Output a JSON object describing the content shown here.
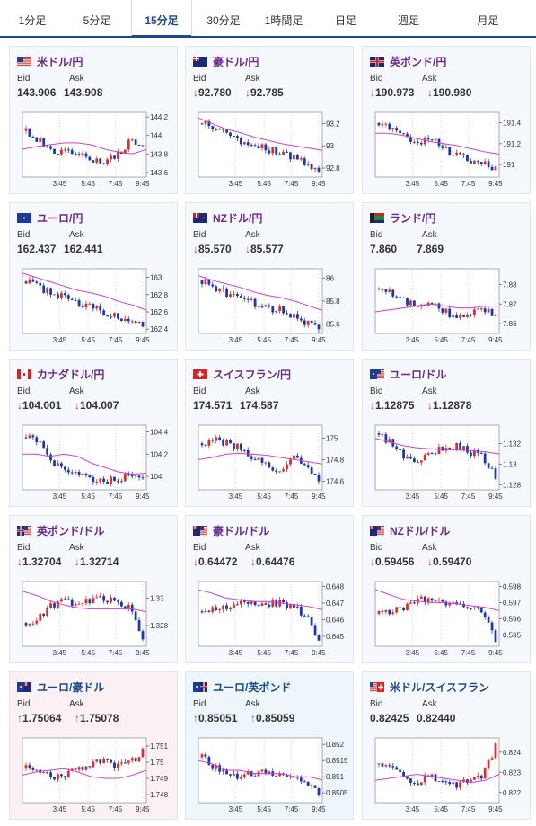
{
  "tabs": [
    {
      "label": "1分足",
      "active": false
    },
    {
      "label": "5分足",
      "active": false
    },
    {
      "label": "15分足",
      "active": true
    },
    {
      "label": "30分足",
      "active": false
    },
    {
      "label": "1時間足",
      "active": false
    },
    {
      "label": "日足",
      "active": false
    },
    {
      "label": "週足",
      "active": false
    },
    {
      "label": "月足",
      "active": false
    }
  ],
  "labels": {
    "bid": "Bid",
    "ask": "Ask"
  },
  "colors": {
    "up": "#d63030",
    "down": "#1a3aa8",
    "ma": "#d040d0",
    "arrow_down": "#d63030",
    "arrow_up": "#2a7ad0",
    "name": "#6a2a8a"
  },
  "cards": [
    {
      "name": "米ドル/円",
      "flag": "us",
      "bid": "143.906",
      "ask": "143.908",
      "dir": "",
      "chart_data": {
        "type": "candlestick",
        "x_ticks": [
          "3:45",
          "5:45",
          "7:45",
          "9:45"
        ],
        "y_ticks": [
          "144.2",
          "144",
          "143.8",
          "143.6"
        ],
        "ylim": [
          143.55,
          144.25
        ],
        "trend": [
          144.05,
          143.95,
          143.85,
          143.82,
          143.78,
          143.75,
          143.72,
          143.78,
          143.95,
          143.93
        ],
        "ma": [
          143.85,
          143.88,
          143.9,
          143.92,
          143.92,
          143.9,
          143.85,
          143.82,
          143.8,
          143.85
        ]
      }
    },
    {
      "name": "豪ドル/円",
      "flag": "au",
      "bid": "92.780",
      "ask": "92.785",
      "dir": "down",
      "chart_data": {
        "type": "candlestick",
        "x_ticks": [
          "3:45",
          "5:45",
          "7:45",
          "9:45"
        ],
        "y_ticks": [
          "93.2",
          "93",
          "92.8"
        ],
        "ylim": [
          92.72,
          93.3
        ],
        "trend": [
          93.2,
          93.15,
          93.1,
          93.05,
          93.0,
          92.97,
          92.95,
          92.9,
          92.85,
          92.78
        ],
        "ma": [
          93.25,
          93.2,
          93.15,
          93.12,
          93.08,
          93.05,
          93.02,
          93.0,
          92.98,
          92.96
        ]
      }
    },
    {
      "name": "英ポンド/円",
      "flag": "gb",
      "bid": "190.973",
      "ask": "190.980",
      "dir": "down",
      "chart_data": {
        "type": "candlestick",
        "x_ticks": [
          "3:45",
          "5:45",
          "7:45",
          "9:45"
        ],
        "y_ticks": [
          "191.4",
          "191.2",
          "191"
        ],
        "ylim": [
          190.88,
          191.5
        ],
        "trend": [
          191.4,
          191.35,
          191.3,
          191.2,
          191.25,
          191.15,
          191.1,
          191.05,
          191.0,
          190.97
        ],
        "ma": [
          191.3,
          191.3,
          191.28,
          191.25,
          191.22,
          191.2,
          191.18,
          191.15,
          191.12,
          191.1
        ]
      }
    },
    {
      "name": "ユーロ/円",
      "flag": "eu",
      "bid": "162.437",
      "ask": "162.441",
      "dir": "",
      "chart_data": {
        "type": "candlestick",
        "x_ticks": [
          "3:45",
          "5:45",
          "7:45",
          "9:45"
        ],
        "y_ticks": [
          "163",
          "162.8",
          "162.6",
          "162.4"
        ],
        "ylim": [
          162.35,
          163.1
        ],
        "trend": [
          162.95,
          162.9,
          162.8,
          162.78,
          162.7,
          162.65,
          162.6,
          162.55,
          162.5,
          162.44
        ],
        "ma": [
          163.05,
          163.0,
          162.95,
          162.9,
          162.85,
          162.82,
          162.78,
          162.72,
          162.68,
          162.62
        ]
      }
    },
    {
      "name": "NZドル/円",
      "flag": "nz",
      "bid": "85.570",
      "ask": "85.577",
      "dir": "down",
      "chart_data": {
        "type": "candlestick",
        "x_ticks": [
          "3:45",
          "5:45",
          "7:45",
          "9:45"
        ],
        "y_ticks": [
          "86",
          "85.8",
          "85.6"
        ],
        "ylim": [
          85.52,
          86.08
        ],
        "trend": [
          85.98,
          85.92,
          85.86,
          85.82,
          85.78,
          85.75,
          85.72,
          85.68,
          85.62,
          85.57
        ],
        "ma": [
          86.02,
          85.98,
          85.95,
          85.92,
          85.88,
          85.85,
          85.83,
          85.8,
          85.76,
          85.72
        ]
      }
    },
    {
      "name": "ランド/円",
      "flag": "za",
      "bid": "7.860",
      "ask": "7.869",
      "dir": "",
      "chart_data": {
        "type": "candlestick",
        "x_ticks": [
          "3:45",
          "5:45",
          "7:45",
          "9:45"
        ],
        "y_ticks": [
          "7.88",
          "7.87",
          "7.86"
        ],
        "ylim": [
          7.855,
          7.888
        ],
        "trend": [
          7.878,
          7.875,
          7.872,
          7.868,
          7.872,
          7.866,
          7.864,
          7.866,
          7.868,
          7.864
        ],
        "ma": [
          7.866,
          7.867,
          7.868,
          7.869,
          7.87,
          7.869,
          7.868,
          7.868,
          7.869,
          7.869
        ]
      }
    },
    {
      "name": "カナダドル/円",
      "flag": "ca",
      "bid": "104.001",
      "ask": "104.007",
      "dir": "down",
      "chart_data": {
        "type": "candlestick",
        "x_ticks": [
          "3:45",
          "5:45",
          "7:45",
          "9:45"
        ],
        "y_ticks": [
          "104.4",
          "104.2",
          "104"
        ],
        "ylim": [
          103.88,
          104.46
        ],
        "trend": [
          104.35,
          104.3,
          104.15,
          104.05,
          104.0,
          103.98,
          103.95,
          103.98,
          104.0,
          104.02
        ],
        "ma": [
          104.2,
          104.2,
          104.18,
          104.2,
          104.18,
          104.12,
          104.08,
          104.04,
          104.02,
          104.03
        ]
      }
    },
    {
      "name": "スイスフラン/円",
      "flag": "ch",
      "bid": "174.571",
      "ask": "174.587",
      "dir": "",
      "chart_data": {
        "type": "candlestick",
        "x_ticks": [
          "3:45",
          "5:45",
          "7:45",
          "9:45"
        ],
        "y_ticks": [
          "175",
          "174.8",
          "174.6"
        ],
        "ylim": [
          174.52,
          175.12
        ],
        "trend": [
          174.95,
          175.0,
          174.95,
          174.9,
          174.8,
          174.75,
          174.7,
          174.85,
          174.75,
          174.6
        ],
        "ma": [
          174.8,
          174.82,
          174.85,
          174.86,
          174.85,
          174.84,
          174.82,
          174.8,
          174.78,
          174.76
        ]
      }
    },
    {
      "name": "ユーロ/ドル",
      "flag": "euus",
      "bid": "1.12875",
      "ask": "1.12878",
      "dir": "down",
      "chart_data": {
        "type": "candlestick",
        "x_ticks": [
          "3:45",
          "5:45",
          "7:45",
          "9:45"
        ],
        "y_ticks": [
          "1.132",
          "1.13",
          "1.128"
        ],
        "ylim": [
          1.1275,
          1.1338
        ],
        "trend": [
          1.133,
          1.132,
          1.1305,
          1.13,
          1.131,
          1.1315,
          1.1318,
          1.1312,
          1.1308,
          1.1288
        ],
        "ma": [
          1.1325,
          1.1322,
          1.1318,
          1.1316,
          1.1315,
          1.1314,
          1.1314,
          1.1313,
          1.1312,
          1.131
        ]
      }
    },
    {
      "name": "英ポンド/ドル",
      "flag": "gbus",
      "bid": "1.32704",
      "ask": "1.32714",
      "dir": "down",
      "chart_data": {
        "type": "candlestick",
        "x_ticks": [
          "3:45",
          "5:45",
          "7:45",
          "9:45"
        ],
        "y_ticks": [
          "1.33",
          "1.328"
        ],
        "ylim": [
          1.3265,
          1.3312
        ],
        "trend": [
          1.3282,
          1.3285,
          1.3295,
          1.3298,
          1.3296,
          1.3298,
          1.33,
          1.3298,
          1.3292,
          1.3272
        ],
        "ma": [
          1.3305,
          1.3302,
          1.3298,
          1.3295,
          1.3293,
          1.3292,
          1.3292,
          1.3292,
          1.3292,
          1.329
        ]
      }
    },
    {
      "name": "豪ドル/ドル",
      "flag": "auus",
      "bid": "0.64472",
      "ask": "0.64476",
      "dir": "down",
      "chart_data": {
        "type": "candlestick",
        "x_ticks": [
          "3:45",
          "5:45",
          "7:45",
          "9:45"
        ],
        "y_ticks": [
          "0.648",
          "0.647",
          "0.646",
          "0.645"
        ],
        "ylim": [
          0.6444,
          0.6483
        ],
        "trend": [
          0.6465,
          0.6466,
          0.6468,
          0.6472,
          0.6471,
          0.647,
          0.647,
          0.6468,
          0.6463,
          0.6447
        ],
        "ma": [
          0.6478,
          0.6476,
          0.6473,
          0.6472,
          0.6471,
          0.6471,
          0.647,
          0.6469,
          0.6468,
          0.6466
        ]
      }
    },
    {
      "name": "NZドル/ドル",
      "flag": "nzus",
      "bid": "0.59456",
      "ask": "0.59470",
      "dir": "down",
      "chart_data": {
        "type": "candlestick",
        "x_ticks": [
          "3:45",
          "5:45",
          "7:45",
          "9:45"
        ],
        "y_ticks": [
          "0.598",
          "0.597",
          "0.596",
          "0.595"
        ],
        "ylim": [
          0.5943,
          0.5983
        ],
        "trend": [
          0.5963,
          0.5964,
          0.5967,
          0.5972,
          0.5971,
          0.597,
          0.5969,
          0.5967,
          0.5963,
          0.5946
        ],
        "ma": [
          0.5978,
          0.5975,
          0.5972,
          0.5971,
          0.597,
          0.597,
          0.5969,
          0.5968,
          0.5967,
          0.5965
        ]
      }
    },
    {
      "name": "ユーロ/豪ドル",
      "flag": "euau",
      "bid": "1.75064",
      "ask": "1.75078",
      "dir": "up",
      "chart_data": {
        "type": "candlestick",
        "x_ticks": [
          "3:45",
          "5:45",
          "7:45",
          "9:45"
        ],
        "y_ticks": [
          "1.751",
          "1.75",
          "1.749",
          "1.748"
        ],
        "ylim": [
          1.7475,
          1.7515
        ],
        "trend": [
          1.7496,
          1.7495,
          1.749,
          1.7492,
          1.7496,
          1.7499,
          1.7501,
          1.7498,
          1.75,
          1.7506
        ],
        "ma": [
          1.7492,
          1.7494,
          1.7495,
          1.7496,
          1.7494,
          1.7491,
          1.749,
          1.749,
          1.7492,
          1.7495
        ]
      }
    },
    {
      "name": "ユーロ/英ポンド",
      "flag": "eugb",
      "bid": "0.85051",
      "ask": "0.85059",
      "dir": "up",
      "chart_data": {
        "type": "candlestick",
        "x_ticks": [
          "3:45",
          "5:45",
          "7:45",
          "9:45"
        ],
        "y_ticks": [
          "0.852",
          "0.8515",
          "0.851",
          "0.8505"
        ],
        "ylim": [
          0.8502,
          0.8522
        ],
        "trend": [
          0.8516,
          0.8513,
          0.8511,
          0.851,
          0.8511,
          0.8512,
          0.8511,
          0.851,
          0.8508,
          0.8505
        ],
        "ma": [
          0.8515,
          0.8514,
          0.8512,
          0.8512,
          0.8511,
          0.8511,
          0.8511,
          0.851,
          0.851,
          0.8509
        ]
      }
    },
    {
      "name": "米ドル/スイスフラン",
      "flag": "usch",
      "bid": "0.82425",
      "ask": "0.82440",
      "dir": "",
      "chart_data": {
        "type": "candlestick",
        "x_ticks": [
          "3:45",
          "5:45",
          "7:45",
          "9:45"
        ],
        "y_ticks": [
          "0.824",
          "0.823",
          "0.822"
        ],
        "ylim": [
          0.8215,
          0.8247
        ],
        "trend": [
          0.8234,
          0.8232,
          0.8228,
          0.8225,
          0.8228,
          0.8226,
          0.8224,
          0.8225,
          0.8228,
          0.8243
        ],
        "ma": [
          0.8226,
          0.8227,
          0.8228,
          0.8229,
          0.8228,
          0.8227,
          0.8226,
          0.8225,
          0.8226,
          0.8229
        ]
      }
    }
  ]
}
